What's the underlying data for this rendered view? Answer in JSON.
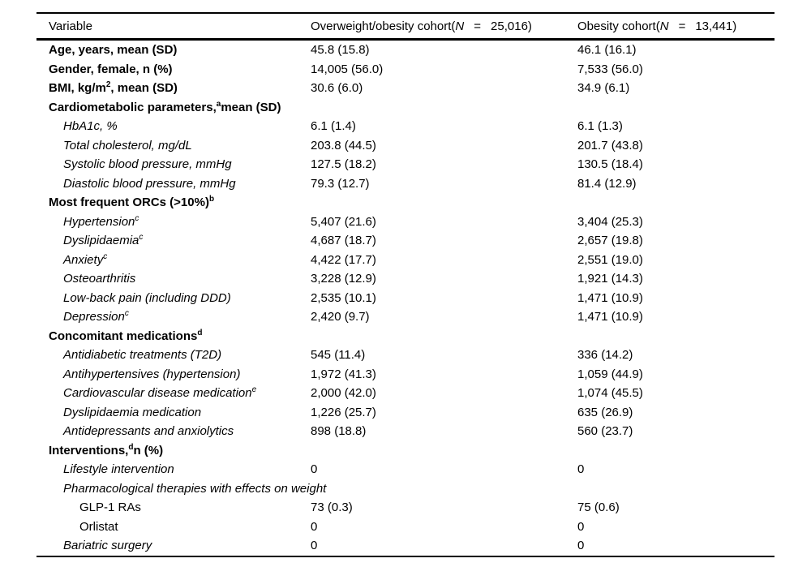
{
  "page": {
    "background_color": "#ffffff",
    "text_color": "#000000"
  },
  "table": {
    "header": {
      "col1": "Variable",
      "col2": {
        "pre": "Overweight/obesity cohort(",
        "n": "N",
        "eq": "=",
        "val": "25,016)"
      },
      "col3": {
        "pre": "Obesity cohort(",
        "n": "N",
        "eq": "=",
        "val": "13,441)"
      }
    },
    "rows": [
      {
        "pre": "Age, years, mean (SD)",
        "sup": "",
        "post": "",
        "style": "bold",
        "indent": 0,
        "c1": "45.8 (15.8)",
        "c2": "46.1 (16.1)"
      },
      {
        "pre": "Gender, female, n (%)",
        "sup": "",
        "post": "",
        "style": "bold",
        "indent": 0,
        "c1": "14,005 (56.0)",
        "c2": "7,533 (56.0)"
      },
      {
        "pre": "BMI, kg/m",
        "sup": "2",
        "post": ", mean (SD)",
        "style": "bold",
        "indent": 0,
        "c1": "30.6 (6.0)",
        "c2": "34.9 (6.1)"
      },
      {
        "pre": "Cardiometabolic parameters,",
        "sup": "a",
        "post": "mean (SD)",
        "style": "bold",
        "indent": 0,
        "c1": "",
        "c2": ""
      },
      {
        "pre": "HbA1c, %",
        "sup": "",
        "post": "",
        "style": "italic",
        "indent": 1,
        "c1": "6.1 (1.4)",
        "c2": "6.1 (1.3)"
      },
      {
        "pre": "Total cholesterol, mg/dL",
        "sup": "",
        "post": "",
        "style": "italic",
        "indent": 1,
        "c1": "203.8 (44.5)",
        "c2": "201.7 (43.8)"
      },
      {
        "pre": "Systolic blood pressure, mmHg",
        "sup": "",
        "post": "",
        "style": "italic",
        "indent": 1,
        "c1": "127.5 (18.2)",
        "c2": "130.5 (18.4)"
      },
      {
        "pre": "Diastolic blood pressure, mmHg",
        "sup": "",
        "post": "",
        "style": "italic",
        "indent": 1,
        "c1": "79.3 (12.7)",
        "c2": "81.4 (12.9)"
      },
      {
        "pre": "Most frequent ORCs (>10%)",
        "sup": "b",
        "post": "",
        "style": "bold",
        "indent": 0,
        "c1": "",
        "c2": ""
      },
      {
        "pre": "Hypertension",
        "sup": "c",
        "post": "",
        "style": "italic",
        "indent": 1,
        "c1": "5,407 (21.6)",
        "c2": "3,404 (25.3)"
      },
      {
        "pre": "Dyslipidaemia",
        "sup": "c",
        "post": "",
        "style": "italic",
        "indent": 1,
        "c1": "4,687 (18.7)",
        "c2": "2,657 (19.8)"
      },
      {
        "pre": "Anxiety",
        "sup": "c",
        "post": "",
        "style": "italic",
        "indent": 1,
        "c1": "4,422 (17.7)",
        "c2": "2,551 (19.0)"
      },
      {
        "pre": "Osteoarthritis",
        "sup": "",
        "post": "",
        "style": "italic",
        "indent": 1,
        "c1": "3,228 (12.9)",
        "c2": "1,921 (14.3)"
      },
      {
        "pre": "Low-back pain (including DDD)",
        "sup": "",
        "post": "",
        "style": "italic",
        "indent": 1,
        "c1": "2,535 (10.1)",
        "c2": "1,471 (10.9)"
      },
      {
        "pre": "Depression",
        "sup": "c",
        "post": "",
        "style": "italic",
        "indent": 1,
        "c1": "2,420 (9.7)",
        "c2": "1,471 (10.9)"
      },
      {
        "pre": "Concomitant medications",
        "sup": "d",
        "post": "",
        "style": "bold",
        "indent": 0,
        "c1": "",
        "c2": ""
      },
      {
        "pre": "Antidiabetic treatments (T2D)",
        "sup": "",
        "post": "",
        "style": "italic",
        "indent": 1,
        "c1": "545 (11.4)",
        "c2": "336 (14.2)"
      },
      {
        "pre": "Antihypertensives (hypertension)",
        "sup": "",
        "post": "",
        "style": "italic",
        "indent": 1,
        "c1": "1,972 (41.3)",
        "c2": "1,059 (44.9)"
      },
      {
        "pre": "Cardiovascular disease medication",
        "sup": "e",
        "post": "",
        "style": "italic",
        "indent": 1,
        "c1": "2,000 (42.0)",
        "c2": "1,074 (45.5)"
      },
      {
        "pre": "Dyslipidaemia medication",
        "sup": "",
        "post": "",
        "style": "italic",
        "indent": 1,
        "c1": "1,226 (25.7)",
        "c2": "635 (26.9)"
      },
      {
        "pre": "Antidepressants and anxiolytics",
        "sup": "",
        "post": "",
        "style": "italic",
        "indent": 1,
        "c1": "898 (18.8)",
        "c2": "560 (23.7)"
      },
      {
        "pre": "Interventions,",
        "sup": "d",
        "post": "n (%)",
        "style": "bold",
        "indent": 0,
        "c1": "",
        "c2": ""
      },
      {
        "pre": "Lifestyle intervention",
        "sup": "",
        "post": "",
        "style": "italic",
        "indent": 1,
        "c1": "0",
        "c2": "0"
      },
      {
        "pre": "Pharmacological therapies with effects on weight",
        "sup": "",
        "post": "",
        "style": "italic",
        "indent": 1,
        "c1": "",
        "c2": ""
      },
      {
        "pre": "GLP-1 RAs",
        "sup": "",
        "post": "",
        "style": "plain",
        "indent": 2,
        "c1": "73 (0.3)",
        "c2": "75 (0.6)"
      },
      {
        "pre": "Orlistat",
        "sup": "",
        "post": "",
        "style": "plain",
        "indent": 2,
        "c1": "0",
        "c2": "0"
      },
      {
        "pre": "Bariatric surgery",
        "sup": "",
        "post": "",
        "style": "italic",
        "indent": 1,
        "c1": "0",
        "c2": "0"
      }
    ]
  }
}
